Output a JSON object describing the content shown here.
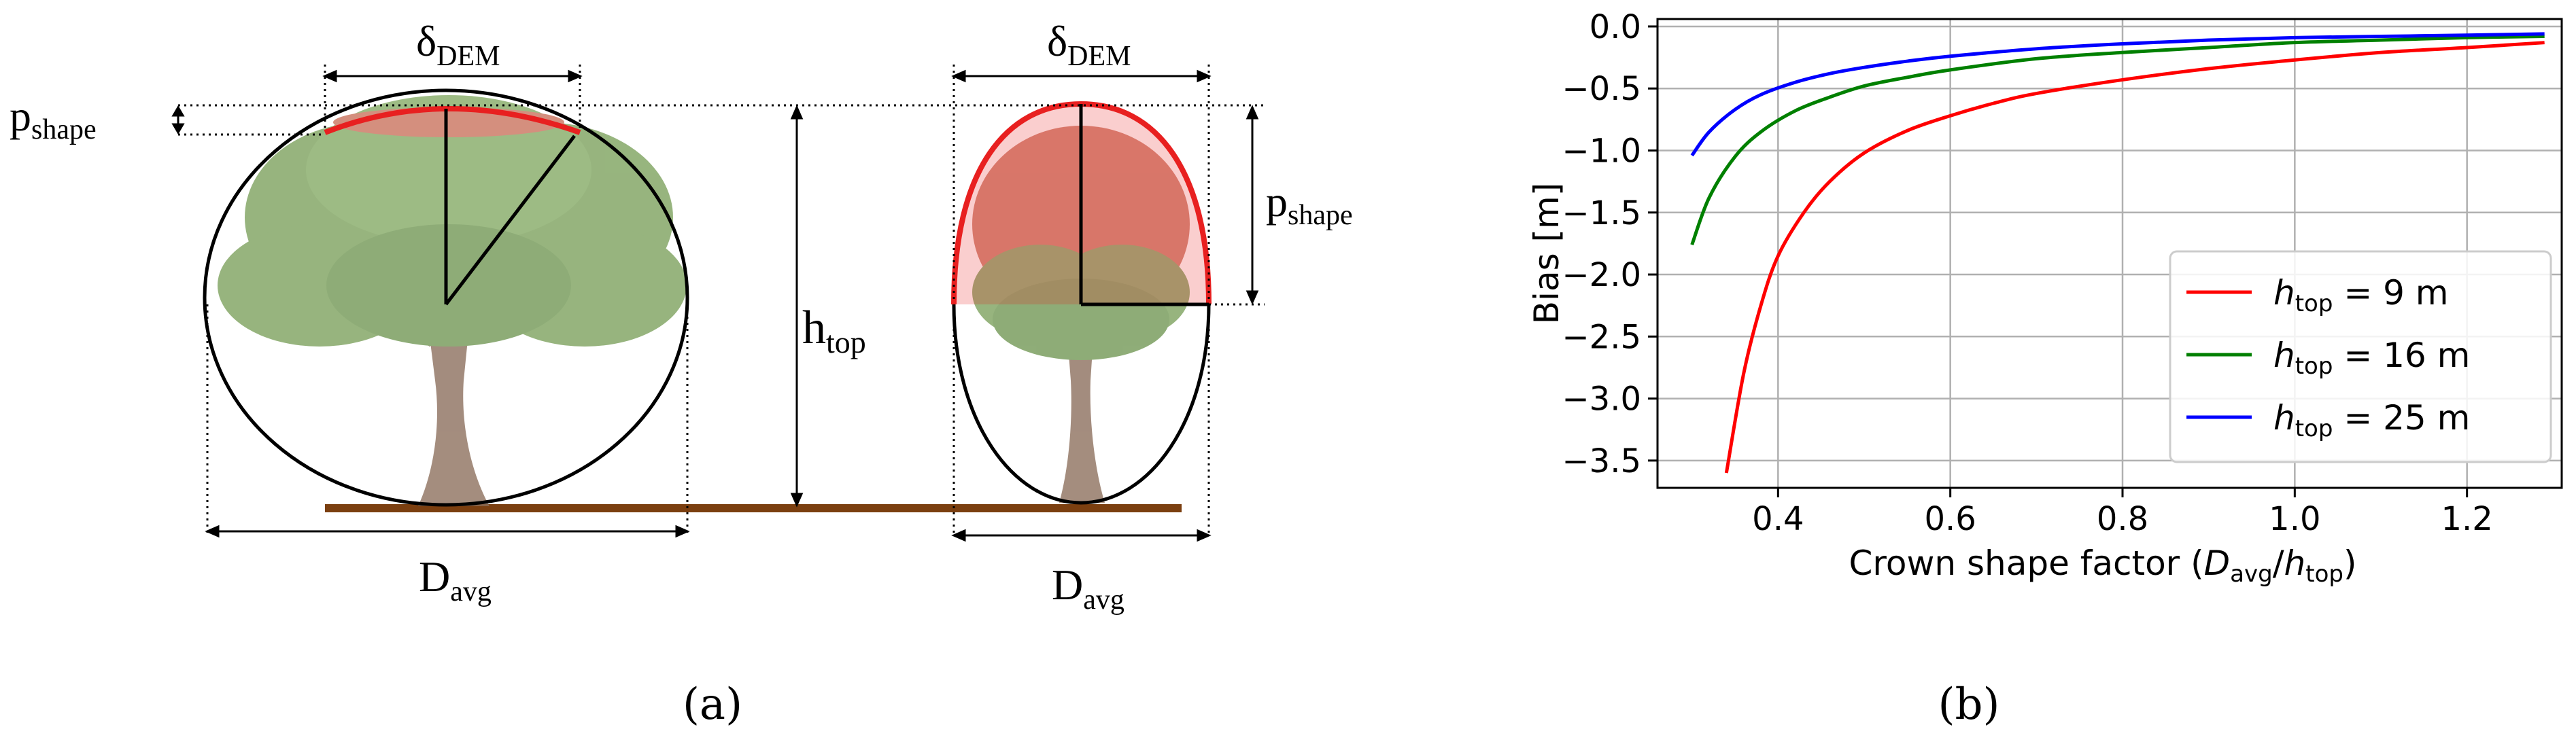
{
  "panel_a": {
    "panel_label": "(a)",
    "labels": {
      "delta_dem": {
        "main": "δ",
        "sub": "DEM"
      },
      "p_shape": {
        "main": "p",
        "sub": "shape"
      },
      "h_top": {
        "main": "h",
        "sub": "top"
      },
      "d_avg": {
        "main": "D",
        "sub": "avg"
      }
    },
    "colors": {
      "ground": "#7b3f10",
      "trunk": "#8a6d5a",
      "foliage_green": "#7aa05a",
      "foliage_red": "#c9705a",
      "outline": "#000000",
      "cap": "#e82020"
    },
    "icons": [
      "broad-tree-icon",
      "narrow-tree-icon"
    ]
  },
  "panel_b": {
    "panel_label": "(b)"
  },
  "chart_data": {
    "type": "line",
    "title": "",
    "xlabel": "Crown shape factor (D_avg/h_top)",
    "ylabel": "Bias [m]",
    "xlim": [
      0.26,
      1.31
    ],
    "ylim": [
      -3.72,
      0.06
    ],
    "xticks": [
      0.4,
      0.6,
      0.8,
      1.0,
      1.2
    ],
    "xtick_labels": [
      "0.4",
      "0.6",
      "0.8",
      "1.0",
      "1.2"
    ],
    "yticks": [
      0.0,
      -0.5,
      -1.0,
      -1.5,
      -2.0,
      -2.5,
      -3.0,
      -3.5
    ],
    "ytick_labels": [
      "0.0",
      "−0.5",
      "−1.0",
      "−1.5",
      "−2.0",
      "−2.5",
      "−3.0",
      "−3.5"
    ],
    "grid": true,
    "legend_position": "bottom-right",
    "xlabel_parts": {
      "prefix": "Crown shape factor (",
      "D": "D",
      "avg": "avg",
      "slash": "/",
      "h": "h",
      "top": "top",
      "suffix": ")"
    },
    "series": [
      {
        "name": "h_top = 9 m",
        "legend": {
          "h": "h",
          "sub": "top",
          "rest": " = 9 m"
        },
        "color": "#ff0000",
        "x": [
          0.34,
          0.36,
          0.38,
          0.4,
          0.43,
          0.46,
          0.5,
          0.55,
          0.6,
          0.65,
          0.7,
          0.8,
          0.9,
          1.0,
          1.1,
          1.2,
          1.29
        ],
        "y": [
          -3.6,
          -2.8,
          -2.25,
          -1.85,
          -1.5,
          -1.25,
          -1.02,
          -0.84,
          -0.72,
          -0.62,
          -0.54,
          -0.43,
          -0.34,
          -0.27,
          -0.21,
          -0.17,
          -0.13
        ]
      },
      {
        "name": "h_top = 16 m",
        "legend": {
          "h": "h",
          "sub": "top",
          "rest": " = 16 m"
        },
        "color": "#008000",
        "x": [
          0.3,
          0.32,
          0.35,
          0.38,
          0.42,
          0.46,
          0.5,
          0.55,
          0.6,
          0.7,
          0.8,
          0.9,
          1.0,
          1.1,
          1.2,
          1.29
        ],
        "y": [
          -1.76,
          -1.38,
          -1.05,
          -0.85,
          -0.68,
          -0.57,
          -0.48,
          -0.41,
          -0.35,
          -0.26,
          -0.21,
          -0.17,
          -0.13,
          -0.11,
          -0.09,
          -0.08
        ]
      },
      {
        "name": "h_top = 25 m",
        "legend": {
          "h": "h",
          "sub": "top",
          "rest": " = 25 m"
        },
        "color": "#0000ff",
        "x": [
          0.3,
          0.32,
          0.35,
          0.38,
          0.42,
          0.46,
          0.5,
          0.55,
          0.6,
          0.7,
          0.8,
          0.9,
          1.0,
          1.1,
          1.2,
          1.29
        ],
        "y": [
          -1.04,
          -0.85,
          -0.67,
          -0.55,
          -0.45,
          -0.38,
          -0.33,
          -0.28,
          -0.24,
          -0.18,
          -0.14,
          -0.11,
          -0.09,
          -0.08,
          -0.07,
          -0.06
        ]
      }
    ]
  }
}
